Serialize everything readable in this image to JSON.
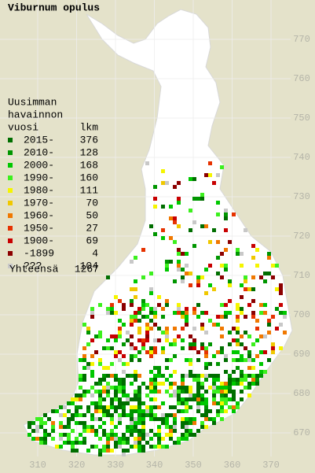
{
  "title": "Viburnum opulus",
  "legend": {
    "heading": [
      "Uusimman",
      "havainnon",
      "vuosi"
    ],
    "count_heading": "lkm",
    "rows": [
      {
        "label": "2015-",
        "count": 376,
        "color": "#006e00"
      },
      {
        "label": "2010-",
        "count": 128,
        "color": "#009600"
      },
      {
        "label": "2000-",
        "count": 168,
        "color": "#00c800"
      },
      {
        "label": "1990-",
        "count": 160,
        "color": "#3cf01e"
      },
      {
        "label": "1980-",
        "count": 111,
        "color": "#f5f500"
      },
      {
        "label": "1970-",
        "count": 70,
        "color": "#f0c800"
      },
      {
        "label": "1960-",
        "count": 50,
        "color": "#f07800"
      },
      {
        "label": "1950-",
        "count": 27,
        "color": "#e63200"
      },
      {
        "label": "1900-",
        "count": 69,
        "color": "#c80000"
      },
      {
        "label": "-1899",
        "count": 4,
        "color": "#8c0000"
      },
      {
        "label": "???",
        "count": 104,
        "color": "#c8c8c8"
      }
    ],
    "total_label": "Yhteensä",
    "total": 1267
  },
  "grid_x": [
    310,
    320,
    330,
    340,
    350,
    360,
    370
  ],
  "grid_y": [
    670,
    680,
    690,
    700,
    710,
    720,
    730,
    740,
    750,
    760,
    770
  ]
}
